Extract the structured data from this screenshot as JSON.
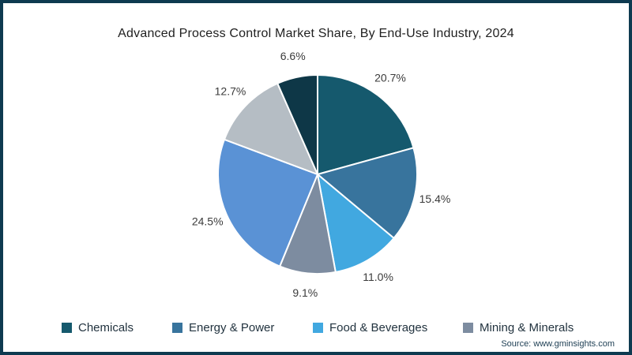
{
  "title": "Advanced Process Control Market Share, By End-Use Industry, 2024",
  "source": "Source: www.gminsights.com",
  "frame": {
    "border_color": "#0e3a50",
    "background": "#ffffff"
  },
  "chart_data": {
    "type": "pie",
    "title": "Advanced Process Control Market Share, By End-Use Industry, 2024",
    "start_angle_deg": 0,
    "direction": "clockwise",
    "slices": [
      {
        "label": "Chemicals",
        "value": 20.7,
        "display": "20.7%",
        "color": "#15596d"
      },
      {
        "label": "Energy & Power",
        "value": 15.4,
        "display": "15.4%",
        "color": "#38749d"
      },
      {
        "label": "Food & Beverages",
        "value": 11.0,
        "display": "11.0%",
        "color": "#41a8e0"
      },
      {
        "label": "Mining & Minerals",
        "value": 9.1,
        "display": "9.1%",
        "color": "#7d8ca0"
      },
      {
        "label": null,
        "value": 24.5,
        "display": "24.5%",
        "color": "#5a92d5"
      },
      {
        "label": null,
        "value": 12.7,
        "display": "12.7%",
        "color": "#b5bdc4"
      },
      {
        "label": null,
        "value": 6.6,
        "display": "6.6%",
        "color": "#0e3747"
      }
    ],
    "legend": [
      {
        "label": "Chemicals",
        "color": "#15596d"
      },
      {
        "label": "Energy & Power",
        "color": "#38749d"
      },
      {
        "label": "Food & Beverages",
        "color": "#41a8e0"
      },
      {
        "label": "Mining & Minerals",
        "color": "#7d8ca0"
      }
    ],
    "legend_position": "bottom",
    "data_label_color": "#3b3b3b",
    "slice_divider_color": "#ffffff"
  }
}
